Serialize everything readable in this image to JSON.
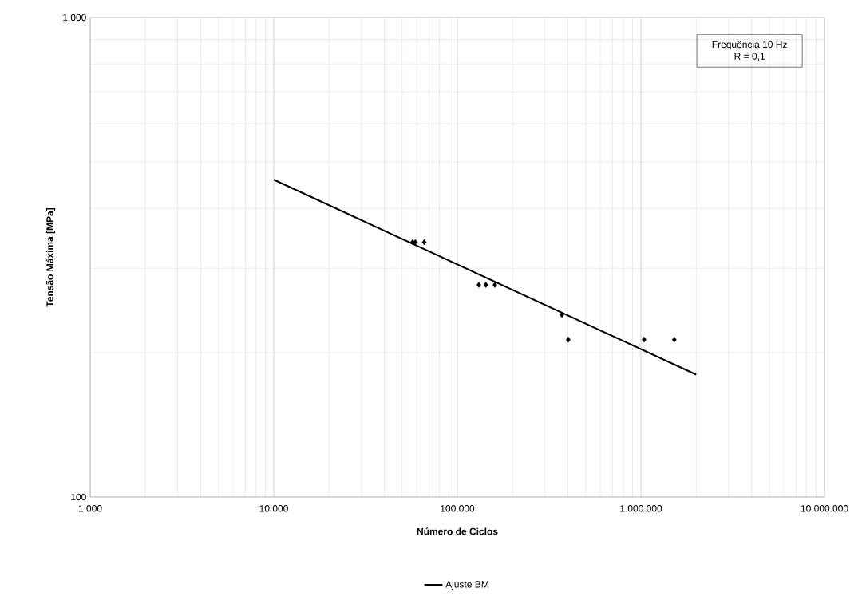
{
  "chart_data": {
    "type": "scatter",
    "xlabel": "Número de Ciclos",
    "ylabel": "Tensão Máxima [MPa]",
    "annotations": [
      "Frequência 10 Hz",
      "R = 0,1"
    ],
    "log": "xy",
    "grid": true,
    "legend": "bottom",
    "xlim": [
      1000,
      10000000
    ],
    "ylim": [
      100,
      1000
    ],
    "xticks": [
      {
        "value": 1000,
        "label": "1.000"
      },
      {
        "value": 10000,
        "label": "10.000"
      },
      {
        "value": 100000,
        "label": "100.000"
      },
      {
        "value": 1000000,
        "label": "1.000.000"
      },
      {
        "value": 10000000,
        "label": "10.000.000"
      }
    ],
    "yticks": [
      100,
      {
        "value": 1000,
        "label": "1.000"
      }
    ],
    "series": [
      {
        "marker": "diamond",
        "color": "#000000",
        "x": [
          57000,
          59000,
          66000,
          131000,
          143000,
          160000,
          371000,
          402000,
          1040000,
          1520000
        ],
        "values": [
          340,
          340,
          340,
          277,
          277,
          277,
          240,
          213,
          213,
          213
        ]
      },
      {
        "type": "line",
        "name": "Ajuste BM",
        "marker": "none",
        "line_style": "solid",
        "color": "#000000",
        "x": [
          10000,
          2000000
        ],
        "values": [
          459,
          180
        ]
      }
    ]
  }
}
